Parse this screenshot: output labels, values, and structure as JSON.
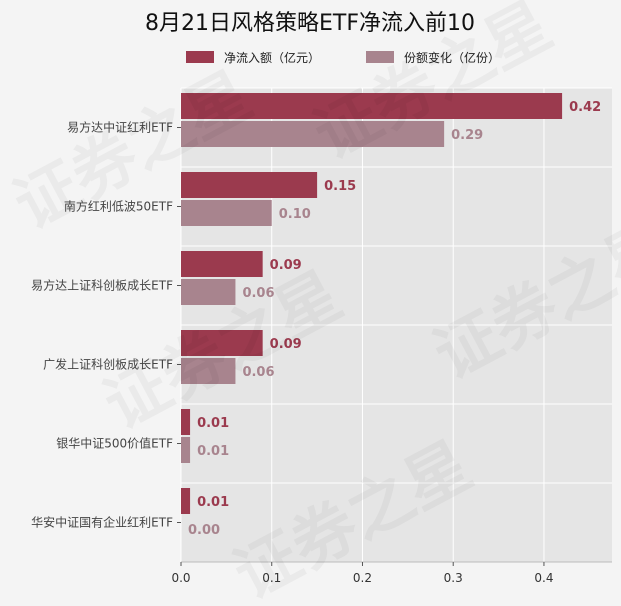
{
  "chart_data": {
    "type": "bar",
    "orientation": "horizontal",
    "title": "8月21日风格策略ETF净流入前10",
    "categories": [
      "易方达中证红利ETF",
      "南方红利低波50ETF",
      "易方达上证科创板成长ETF",
      "广发上证科创板成长ETF",
      "银华中证500价值ETF",
      "华安中证国有企业红利ETF"
    ],
    "series": [
      {
        "name": "净流入额（亿元）",
        "color": "#9b3a4e",
        "values": [
          0.42,
          0.15,
          0.09,
          0.09,
          0.01,
          0.01
        ],
        "labels": [
          "0.42",
          "0.15",
          "0.09",
          "0.09",
          "0.01",
          "0.01"
        ]
      },
      {
        "name": "份额变化（亿份）",
        "color": "#a8848e",
        "values": [
          0.29,
          0.1,
          0.06,
          0.06,
          0.01,
          0.0
        ],
        "labels": [
          "0.29",
          "0.10",
          "0.06",
          "0.06",
          "0.01",
          "0.00"
        ]
      }
    ],
    "xlim": [
      0,
      0.475
    ],
    "xticks": [
      0.0,
      0.1,
      0.2,
      0.3,
      0.4
    ],
    "xtick_labels": [
      "0.0",
      "0.1",
      "0.2",
      "0.3",
      "0.4"
    ],
    "xlabel": "",
    "ylabel": "",
    "grid": true,
    "legend_position": "top",
    "background": "#e5e5e5",
    "watermark": "证券之星"
  }
}
